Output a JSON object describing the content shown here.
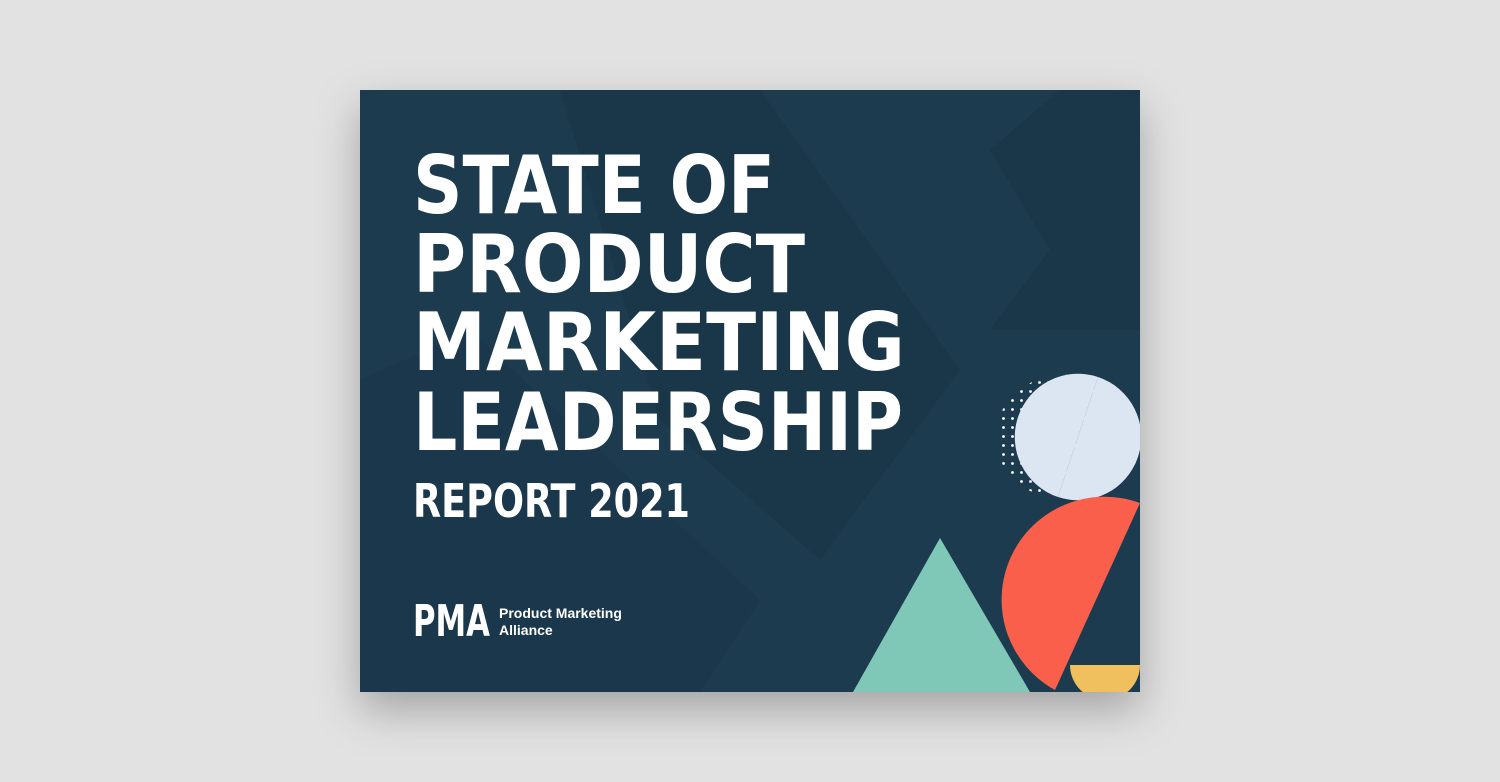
{
  "cover": {
    "title_lines": [
      "STATE OF",
      "PRODUCT",
      "MARKETING",
      "LEADERSHIP"
    ],
    "subtitle": "REPORT 2021",
    "logo": "PMA",
    "brand_lines": [
      "Product Marketing",
      "Alliance"
    ]
  }
}
